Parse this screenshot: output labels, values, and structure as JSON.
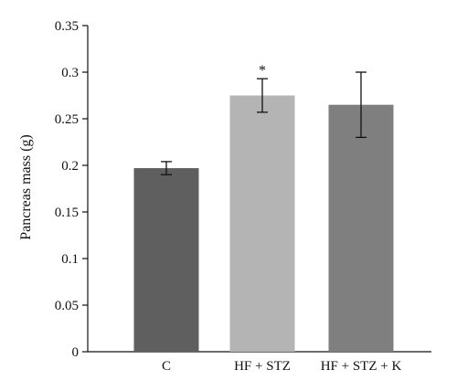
{
  "chart_data": {
    "type": "bar",
    "title": "",
    "xlabel": "",
    "ylabel": "Pancreas mass (g)",
    "ylim": [
      0,
      0.35
    ],
    "yticks": [
      0,
      0.05,
      0.1,
      0.15,
      0.2,
      0.25,
      0.3,
      0.35
    ],
    "ytick_labels": [
      "0",
      "0.05",
      "0.1",
      "0.15",
      "0.2",
      "0.25",
      "0.3",
      "0.35"
    ],
    "categories": [
      "C",
      "HF + STZ",
      "HF + STZ + K"
    ],
    "values": [
      0.197,
      0.275,
      0.265
    ],
    "error_low": [
      0.19,
      0.257,
      0.23
    ],
    "error_high": [
      0.204,
      0.293,
      0.3
    ],
    "colors": [
      "#5f5f5f",
      "#b4b4b4",
      "#7f7f7f"
    ],
    "annotations": [
      {
        "category": "HF + STZ",
        "text": "*"
      }
    ],
    "grid": false,
    "legend": "none"
  }
}
